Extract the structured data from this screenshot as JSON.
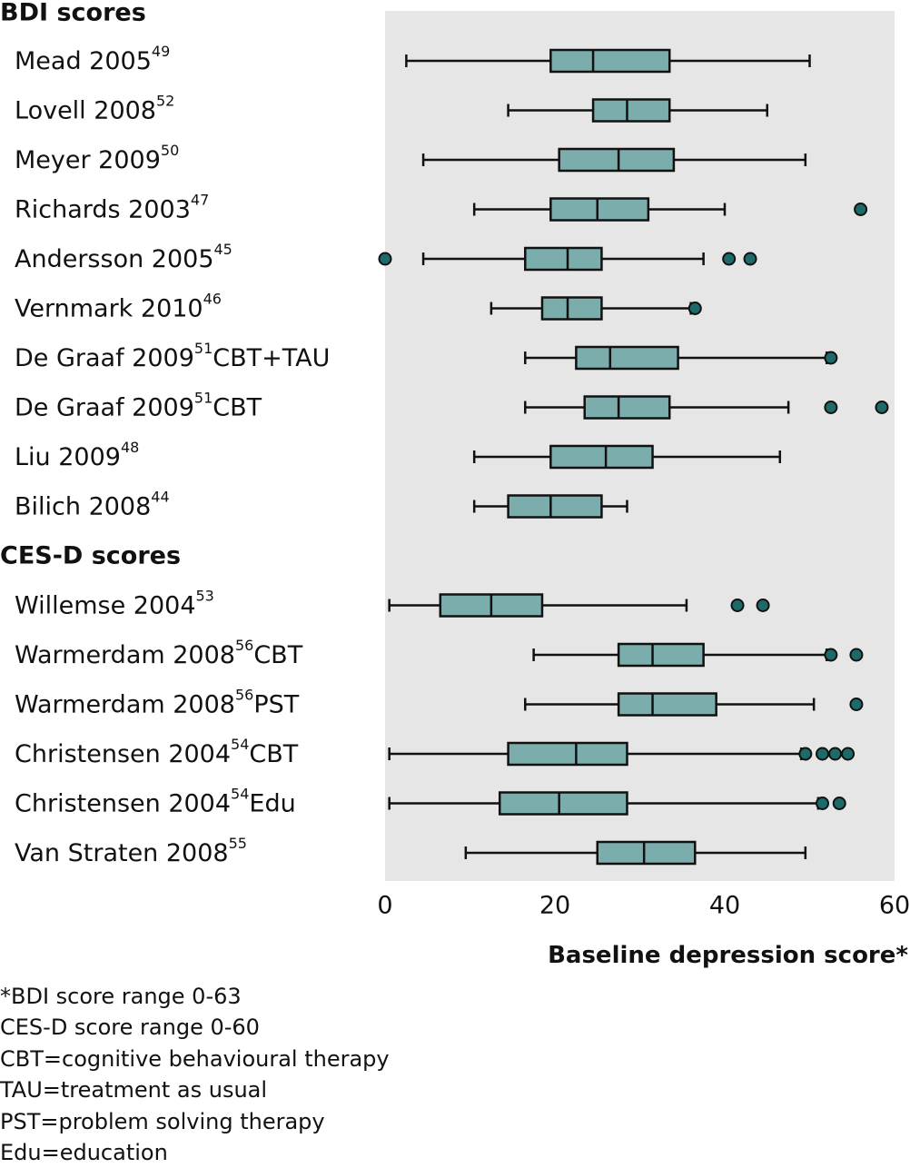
{
  "chart_data": {
    "type": "box",
    "xlabel": "Baseline depression score*",
    "xlim": [
      0,
      60
    ],
    "xticks": [
      0,
      20,
      40,
      60
    ],
    "grid": false,
    "colors": {
      "panel": "#e6e6e6",
      "box_fill": "#7aadab",
      "stroke": "#111111",
      "outlier": "#1c6a6a"
    },
    "groups": [
      {
        "title": "BDI scores",
        "rows": [
          {
            "label": "Mead 2005",
            "sup": "49",
            "suffix": "",
            "min": 2.5,
            "q1": 19.5,
            "median": 24.5,
            "q3": 33.5,
            "max": 50,
            "outliers": []
          },
          {
            "label": "Lovell 2008",
            "sup": "52",
            "suffix": "",
            "min": 14.5,
            "q1": 24.5,
            "median": 28.5,
            "q3": 33.5,
            "max": 45,
            "outliers": []
          },
          {
            "label": "Meyer 2009",
            "sup": "50",
            "suffix": "",
            "min": 4.5,
            "q1": 20.5,
            "median": 27.5,
            "q3": 34,
            "max": 49.5,
            "outliers": []
          },
          {
            "label": "Richards 2003",
            "sup": "47",
            "suffix": "",
            "min": 10.5,
            "q1": 19.5,
            "median": 25,
            "q3": 31,
            "max": 40,
            "outliers": [
              56
            ]
          },
          {
            "label": "Andersson 2005",
            "sup": "45",
            "suffix": "",
            "min": 4.5,
            "q1": 16.5,
            "median": 21.5,
            "q3": 25.5,
            "max": 37.5,
            "outliers": [
              0,
              40.5,
              43
            ]
          },
          {
            "label": "Vernmark 2010",
            "sup": "46",
            "suffix": "",
            "min": 12.5,
            "q1": 18.5,
            "median": 21.5,
            "q3": 25.5,
            "max": 36,
            "outliers": [
              36.5
            ]
          },
          {
            "label": "De Graaf 2009",
            "sup": "51",
            "suffix": "CBT+TAU",
            "min": 16.5,
            "q1": 22.5,
            "median": 26.5,
            "q3": 34.5,
            "max": 52,
            "outliers": [
              52.5
            ]
          },
          {
            "label": "De Graaf 2009",
            "sup": "51",
            "suffix": "CBT",
            "min": 16.5,
            "q1": 23.5,
            "median": 27.5,
            "q3": 33.5,
            "max": 47.5,
            "outliers": [
              52.5,
              58.5
            ]
          },
          {
            "label": "Liu 2009",
            "sup": "48",
            "suffix": "",
            "min": 10.5,
            "q1": 19.5,
            "median": 26,
            "q3": 31.5,
            "max": 46.5,
            "outliers": []
          },
          {
            "label": "Bilich 2008",
            "sup": "44",
            "suffix": "",
            "min": 10.5,
            "q1": 14.5,
            "median": 19.5,
            "q3": 25.5,
            "max": 28.5,
            "outliers": []
          }
        ]
      },
      {
        "title": "CES-D scores",
        "rows": [
          {
            "label": "Willemse 2004",
            "sup": "53",
            "suffix": "",
            "min": 0.5,
            "q1": 6.5,
            "median": 12.5,
            "q3": 18.5,
            "max": 35.5,
            "outliers": [
              41.5,
              44.5
            ]
          },
          {
            "label": "Warmerdam 2008",
            "sup": "56",
            "suffix": "CBT",
            "min": 17.5,
            "q1": 27.5,
            "median": 31.5,
            "q3": 37.5,
            "max": 52,
            "outliers": [
              52.5,
              55.5
            ]
          },
          {
            "label": "Warmerdam 2008",
            "sup": "56",
            "suffix": "PST",
            "min": 16.5,
            "q1": 27.5,
            "median": 31.5,
            "q3": 39,
            "max": 50.5,
            "outliers": [
              55.5
            ]
          },
          {
            "label": "Christensen 2004",
            "sup": "54",
            "suffix": "CBT",
            "min": 0.5,
            "q1": 14.5,
            "median": 22.5,
            "q3": 28.5,
            "max": 49,
            "outliers": [
              49.5,
              51.5,
              53,
              54.5
            ]
          },
          {
            "label": "Christensen 2004",
            "sup": "54",
            "suffix": "Edu",
            "min": 0.5,
            "q1": 13.5,
            "median": 20.5,
            "q3": 28.5,
            "max": 51,
            "outliers": [
              51.5,
              53.5
            ]
          },
          {
            "label": "Van Straten 2008",
            "sup": "55",
            "suffix": "",
            "min": 9.5,
            "q1": 25,
            "median": 30.5,
            "q3": 36.5,
            "max": 49.5,
            "outliers": []
          }
        ]
      }
    ]
  },
  "footnotes": [
    "*BDI score range 0-63",
    "CES-D score range 0-60",
    "CBT=cognitive behavioural therapy",
    "TAU=treatment as usual",
    "PST=problem solving therapy",
    "Edu=education"
  ]
}
